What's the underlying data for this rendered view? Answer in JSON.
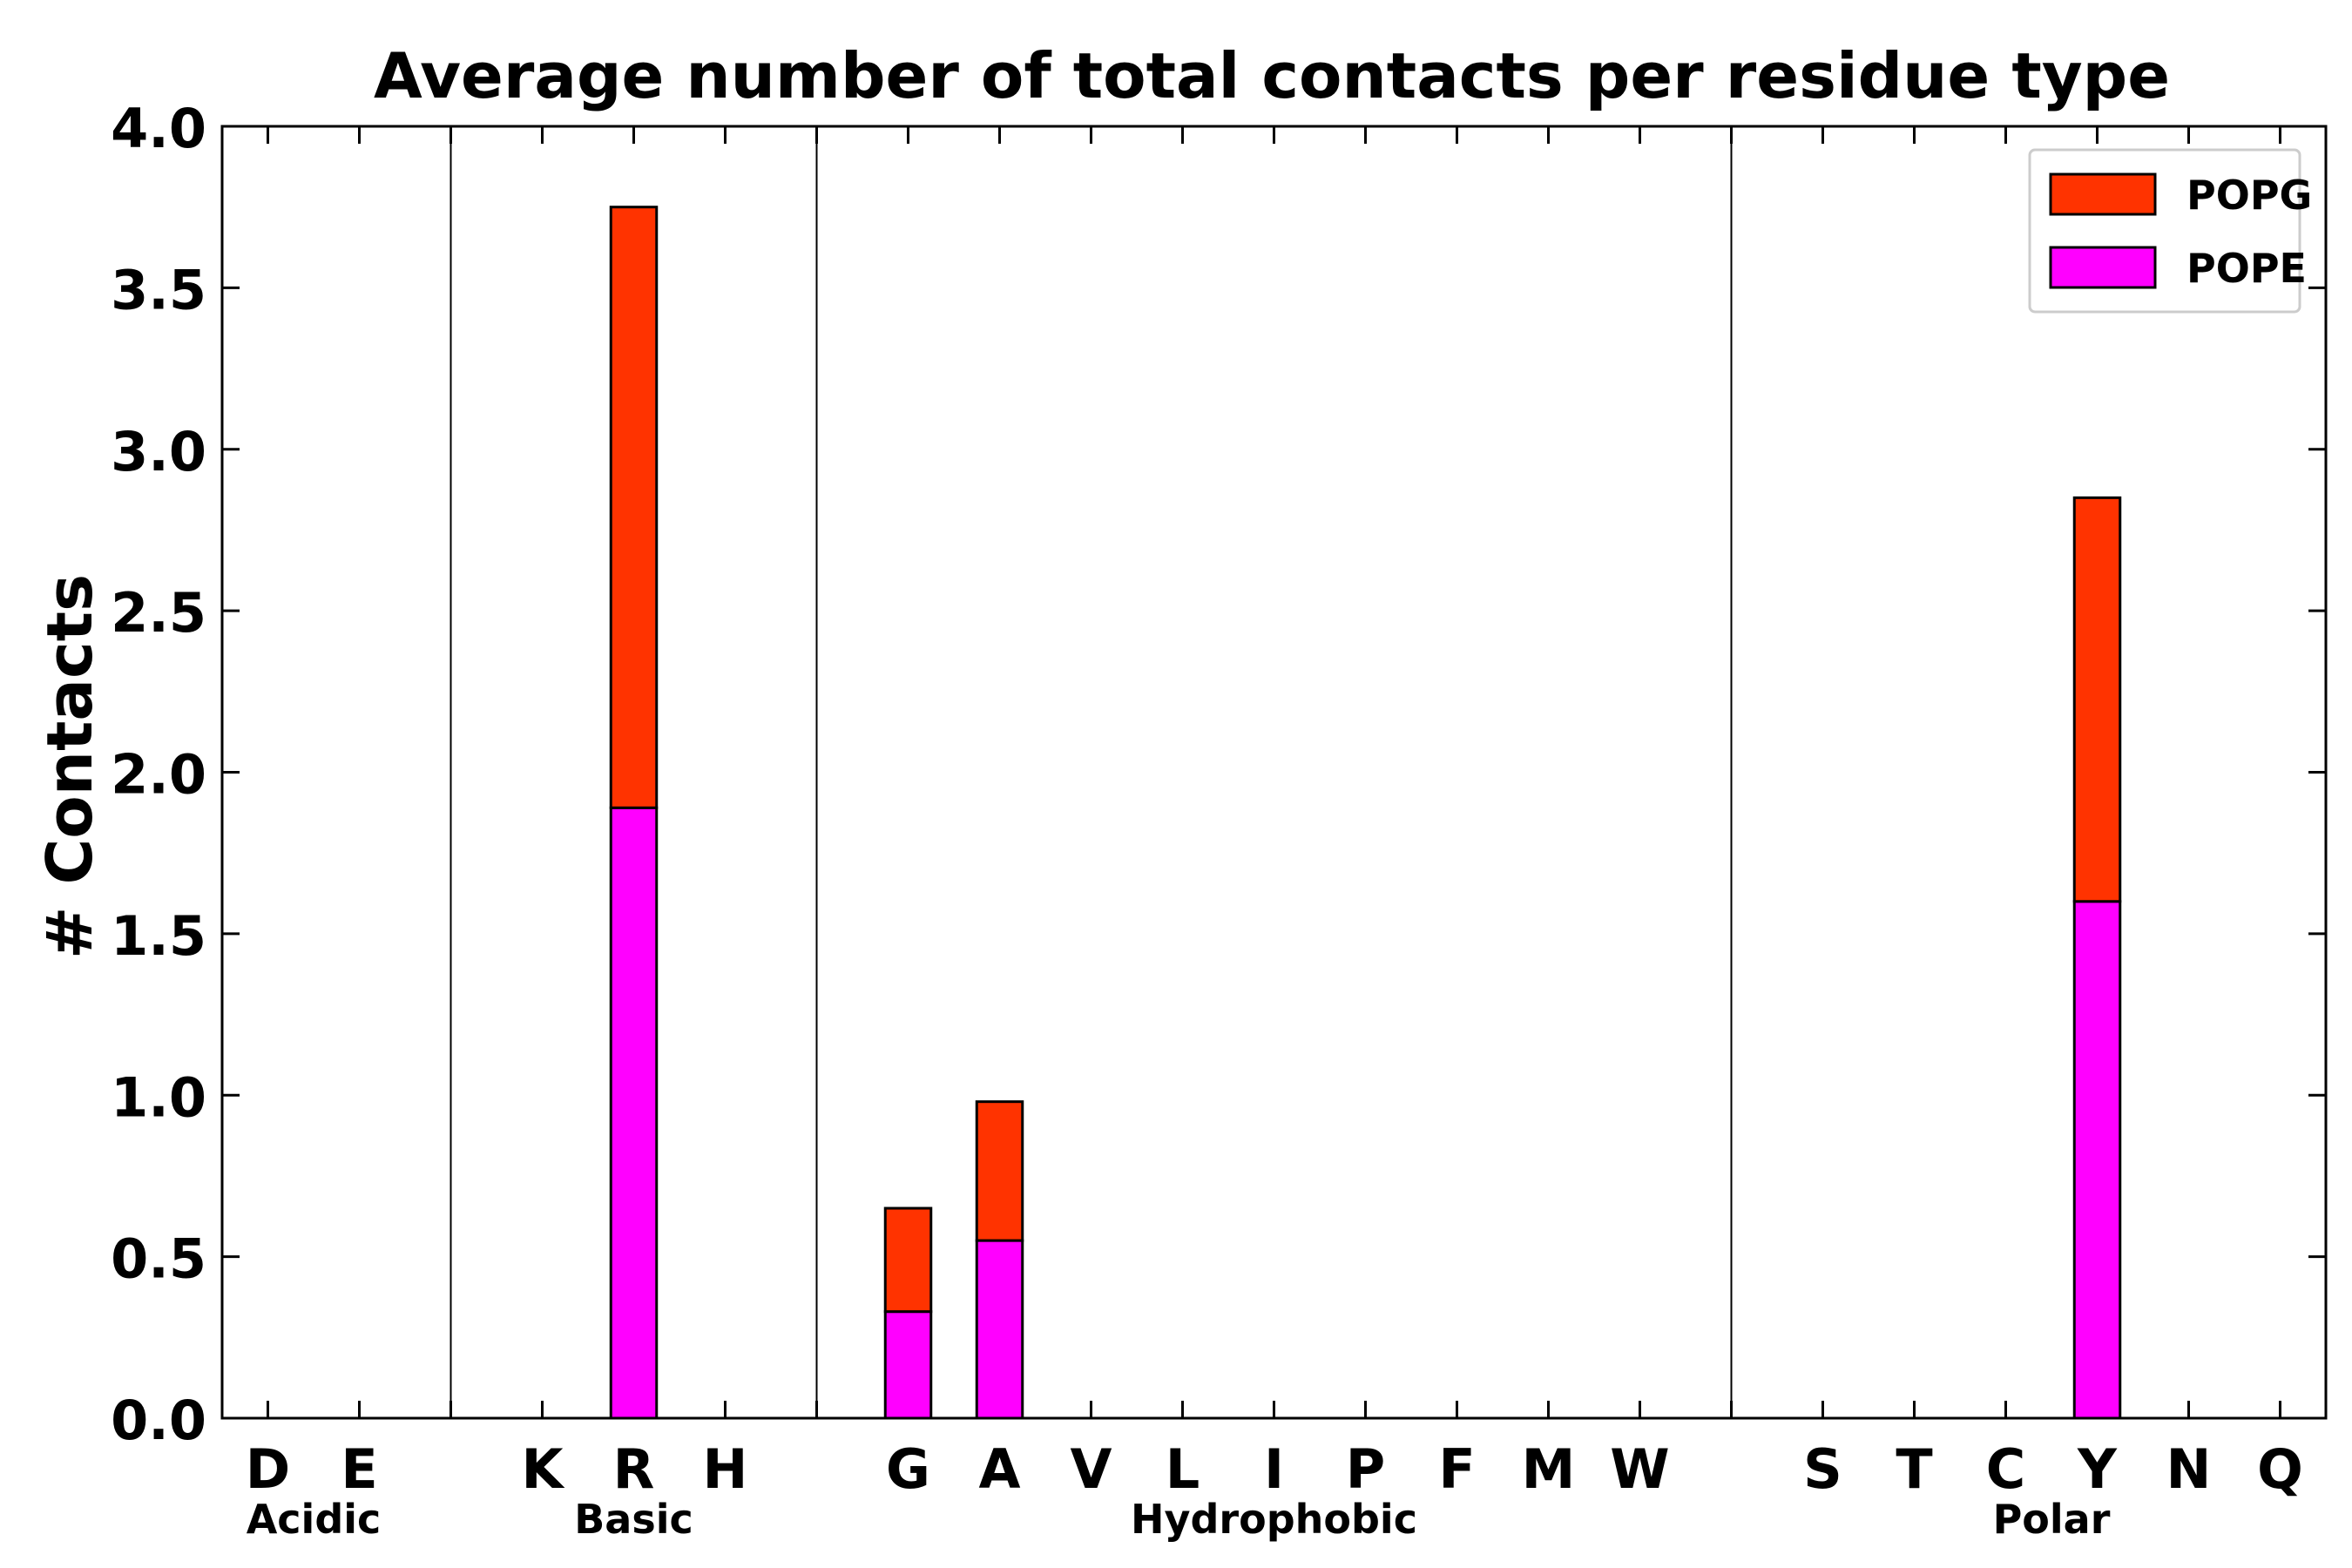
{
  "chart_data": {
    "type": "bar",
    "stacked": true,
    "title": "Average number of total contacts per residue type",
    "ylabel": "# Contacts",
    "xlabel": "",
    "ylim": [
      0,
      4.0
    ],
    "yticks": [
      "0.0",
      "0.5",
      "1.0",
      "1.5",
      "2.0",
      "2.5",
      "3.0",
      "3.5",
      "4.0"
    ],
    "categories": [
      "D",
      "E",
      "",
      "K",
      "R",
      "H",
      "",
      "G",
      "A",
      "V",
      "L",
      "I",
      "P",
      "F",
      "M",
      "W",
      "",
      "S",
      "T",
      "C",
      "Y",
      "N",
      "Q"
    ],
    "groups": [
      {
        "label": "Acidic",
        "start": 0,
        "end": 1
      },
      {
        "label": "Basic",
        "start": 3,
        "end": 5
      },
      {
        "label": "Hydrophobic",
        "start": 7,
        "end": 15
      },
      {
        "label": "Polar",
        "start": 17,
        "end": 22
      }
    ],
    "separators_after": [
      2,
      6,
      16
    ],
    "series": [
      {
        "name": "POPE",
        "color": "#ff00ff",
        "values": [
          0,
          0,
          0,
          0,
          1.89,
          0,
          0,
          0.33,
          0.55,
          0,
          0,
          0,
          0,
          0,
          0,
          0,
          0,
          0,
          0,
          0,
          1.6,
          0,
          0
        ]
      },
      {
        "name": "POPG",
        "color": "#ff3300",
        "values": [
          0,
          0,
          0,
          0,
          1.86,
          0,
          0,
          0.32,
          0.43,
          0,
          0,
          0,
          0,
          0,
          0,
          0,
          0,
          0,
          0,
          0,
          1.25,
          0,
          0
        ]
      }
    ],
    "legend": {
      "position": "top-right",
      "entries": [
        {
          "label": "POPG",
          "color": "#ff3300"
        },
        {
          "label": "POPE",
          "color": "#ff00ff"
        }
      ]
    },
    "grid": false
  }
}
